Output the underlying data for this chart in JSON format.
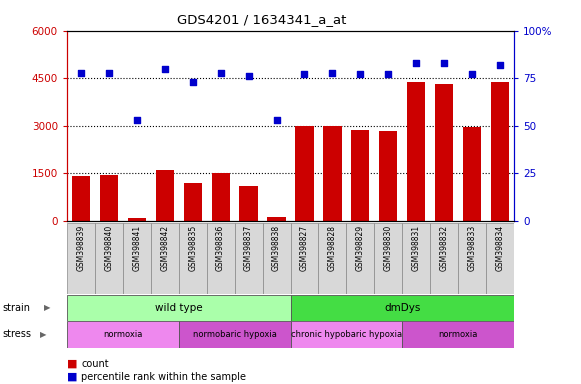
{
  "title": "GDS4201 / 1634341_a_at",
  "samples": [
    "GSM398839",
    "GSM398840",
    "GSM398841",
    "GSM398842",
    "GSM398835",
    "GSM398836",
    "GSM398837",
    "GSM398838",
    "GSM398827",
    "GSM398828",
    "GSM398829",
    "GSM398830",
    "GSM398831",
    "GSM398832",
    "GSM398833",
    "GSM398834"
  ],
  "counts": [
    1420,
    1460,
    80,
    1600,
    1200,
    1520,
    1100,
    120,
    2980,
    2990,
    2860,
    2820,
    4380,
    4320,
    2950,
    4380
  ],
  "percentile_ranks": [
    78,
    78,
    53,
    80,
    73,
    78,
    76,
    53,
    77,
    78,
    77,
    77,
    83,
    83,
    77,
    82
  ],
  "ylim_left": [
    0,
    6000
  ],
  "ylim_right": [
    0,
    100
  ],
  "yticks_left": [
    0,
    1500,
    3000,
    4500,
    6000
  ],
  "ytick_labels_left": [
    "0",
    "1500",
    "3000",
    "4500",
    "6000"
  ],
  "yticks_right": [
    0,
    25,
    50,
    75,
    100
  ],
  "ytick_labels_right": [
    "0",
    "25",
    "50",
    "75",
    "100%"
  ],
  "bar_color": "#cc0000",
  "dot_color": "#0000cc",
  "bg_color": "#ffffff",
  "label_bg": "#d8d8d8",
  "strain_groups": [
    {
      "label": "wild type",
      "start": 0,
      "end": 8,
      "color": "#aaffaa"
    },
    {
      "label": "dmDys",
      "start": 8,
      "end": 16,
      "color": "#44dd44"
    }
  ],
  "stress_groups": [
    {
      "label": "normoxia",
      "start": 0,
      "end": 4,
      "color": "#ee88ee"
    },
    {
      "label": "normobaric hypoxia",
      "start": 4,
      "end": 8,
      "color": "#cc55cc"
    },
    {
      "label": "chronic hypobaric hypoxia",
      "start": 8,
      "end": 12,
      "color": "#ee88ee"
    },
    {
      "label": "normoxia",
      "start": 12,
      "end": 16,
      "color": "#cc55cc"
    }
  ],
  "left_axis_color": "#cc0000",
  "right_axis_color": "#0000cc"
}
